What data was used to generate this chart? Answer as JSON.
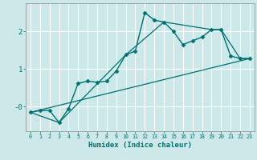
{
  "xlabel": "Humidex (Indice chaleur)",
  "bg_color": "#cce8e8",
  "grid_color": "#ffffff",
  "line_color": "#007070",
  "xlim": [
    -0.5,
    23.5
  ],
  "ylim": [
    -0.65,
    2.75
  ],
  "xticks": [
    0,
    1,
    2,
    3,
    4,
    5,
    6,
    7,
    8,
    9,
    10,
    11,
    12,
    13,
    14,
    15,
    16,
    17,
    18,
    19,
    20,
    21,
    22,
    23
  ],
  "yticks": [
    0.0,
    1.0,
    2.0
  ],
  "ytick_labels": [
    "-0",
    "1",
    "2"
  ],
  "series_main": {
    "x": [
      0,
      1,
      2,
      3,
      4,
      5,
      6,
      7,
      8,
      9,
      10,
      11,
      12,
      13,
      14,
      15,
      16,
      17,
      18,
      19,
      20,
      21,
      22,
      23
    ],
    "y": [
      -0.15,
      -0.1,
      -0.1,
      -0.42,
      -0.05,
      0.62,
      0.68,
      0.65,
      0.68,
      0.95,
      1.38,
      1.48,
      2.5,
      2.3,
      2.25,
      2.0,
      1.65,
      1.75,
      1.85,
      2.05,
      2.05,
      1.35,
      1.28,
      1.28
    ]
  },
  "series_envelope": {
    "x": [
      0,
      3,
      10,
      14,
      19,
      20,
      22,
      23
    ],
    "y": [
      -0.15,
      -0.42,
      1.38,
      2.25,
      2.05,
      2.05,
      1.28,
      1.28
    ]
  },
  "series_linear": {
    "x": [
      0,
      23
    ],
    "y": [
      -0.15,
      1.28
    ]
  }
}
